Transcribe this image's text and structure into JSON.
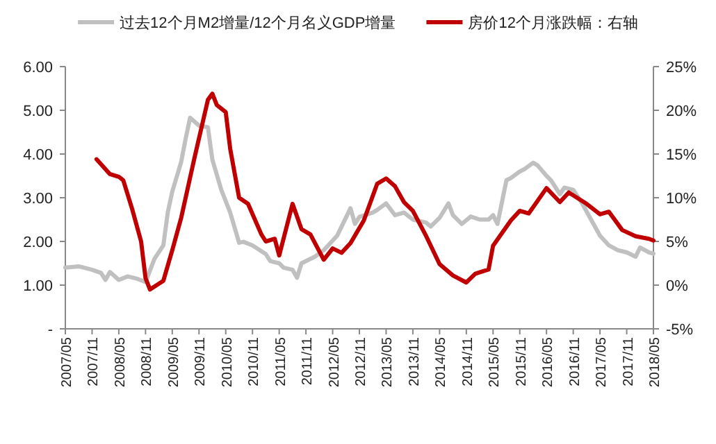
{
  "chart_data": {
    "type": "line",
    "legend": "top",
    "grid": false,
    "marker": "none",
    "line_style": "solid",
    "xlim": [
      "2007-05",
      "2018-05"
    ],
    "xticks": [
      {
        "value": "2007-05",
        "label": "2007/05"
      },
      {
        "value": "2007-11",
        "label": "2007/11"
      },
      {
        "value": "2008-05",
        "label": "2008/05"
      },
      {
        "value": "2008-11",
        "label": "2008/11"
      },
      {
        "value": "2009-05",
        "label": "2009/05"
      },
      {
        "value": "2009-11",
        "label": "2009/11"
      },
      {
        "value": "2010-05",
        "label": "2010/05"
      },
      {
        "value": "2010-11",
        "label": "2010/11"
      },
      {
        "value": "2011-05",
        "label": "2011/05"
      },
      {
        "value": "2011-11",
        "label": "2011/11"
      },
      {
        "value": "2012-05",
        "label": "2012/05"
      },
      {
        "value": "2012-11",
        "label": "2012/11"
      },
      {
        "value": "2013-05",
        "label": "2013/05"
      },
      {
        "value": "2013-11",
        "label": "2013/11"
      },
      {
        "value": "2014-05",
        "label": "2014/05"
      },
      {
        "value": "2014-11",
        "label": "2014/11"
      },
      {
        "value": "2015-05",
        "label": "2015/05"
      },
      {
        "value": "2015-11",
        "label": "2015/11"
      },
      {
        "value": "2016-05",
        "label": "2016/05"
      },
      {
        "value": "2016-11",
        "label": "2016/11"
      },
      {
        "value": "2017-05",
        "label": "2017/05"
      },
      {
        "value": "2017-11",
        "label": "2017/11"
      },
      {
        "value": "2018-05",
        "label": "2018/05"
      }
    ],
    "ylim": [
      0,
      6
    ],
    "yticks": [
      {
        "value": 0,
        "label": "-"
      },
      {
        "value": 1,
        "label": "1.00"
      },
      {
        "value": 2,
        "label": "2.00"
      },
      {
        "value": 3,
        "label": "3.00"
      },
      {
        "value": 4,
        "label": "4.00"
      },
      {
        "value": 5,
        "label": "5.00"
      },
      {
        "value": 6,
        "label": "6.00"
      }
    ],
    "y2lim": [
      -5,
      25
    ],
    "y2ticks": [
      {
        "value": -5,
        "label": "-5%"
      },
      {
        "value": 0,
        "label": "0%"
      },
      {
        "value": 5,
        "label": "5%"
      },
      {
        "value": 10,
        "label": "10%"
      },
      {
        "value": 15,
        "label": "15%"
      },
      {
        "value": 20,
        "label": "20%"
      },
      {
        "value": 25,
        "label": "25%"
      }
    ],
    "series": [
      {
        "name": "过去12个月M2增量/12个月名义GDP增量",
        "color": "#c0c0c0",
        "x": [
          "2007-05",
          "2007-08",
          "2007-11",
          "2008-01",
          "2008-02",
          "2008-03",
          "2008-05",
          "2008-07",
          "2008-09",
          "2008-11",
          "2009-01",
          "2009-03",
          "2009-04",
          "2009-05",
          "2009-07",
          "2009-08",
          "2009-09",
          "2009-11",
          "2010-01",
          "2010-02",
          "2010-04",
          "2010-06",
          "2010-08",
          "2010-09",
          "2010-11",
          "2011-02",
          "2011-03",
          "2011-05",
          "2011-06",
          "2011-08",
          "2011-09",
          "2011-10",
          "2012-01",
          "2012-03",
          "2012-04",
          "2012-06",
          "2012-07",
          "2012-09",
          "2012-10",
          "2012-11",
          "2013-02",
          "2013-03",
          "2013-05",
          "2013-07",
          "2013-09",
          "2013-11",
          "2014-02",
          "2014-03",
          "2014-05",
          "2014-07",
          "2014-08",
          "2014-10",
          "2014-12",
          "2015-02",
          "2015-04",
          "2015-05",
          "2015-06",
          "2015-08",
          "2015-09",
          "2015-11",
          "2015-12",
          "2016-02",
          "2016-03",
          "2016-05",
          "2016-06",
          "2016-08",
          "2016-09",
          "2016-11",
          "2017-01",
          "2017-03",
          "2017-05",
          "2017-07",
          "2017-09",
          "2017-11",
          "2018-01",
          "2018-02",
          "2018-04",
          "2018-05"
        ],
        "values": [
          1.4,
          1.43,
          1.35,
          1.28,
          1.12,
          1.3,
          1.12,
          1.2,
          1.15,
          1.07,
          1.6,
          1.91,
          2.67,
          3.14,
          3.82,
          4.35,
          4.83,
          4.65,
          4.61,
          3.87,
          3.18,
          2.66,
          1.97,
          1.99,
          1.91,
          1.71,
          1.55,
          1.5,
          1.4,
          1.35,
          1.17,
          1.5,
          1.65,
          1.8,
          1.91,
          2.13,
          2.34,
          2.76,
          2.4,
          2.56,
          2.66,
          2.72,
          2.87,
          2.6,
          2.66,
          2.5,
          2.43,
          2.34,
          2.54,
          2.87,
          2.6,
          2.4,
          2.57,
          2.5,
          2.5,
          2.6,
          2.4,
          3.4,
          3.45,
          3.6,
          3.65,
          3.8,
          3.74,
          3.5,
          3.4,
          3.08,
          3.23,
          3.18,
          2.87,
          2.5,
          2.13,
          1.91,
          1.8,
          1.75,
          1.65,
          1.86,
          1.75,
          1.72
        ]
      },
      {
        "name": "房价12个月涨跌幅：右轴",
        "color": "#c00000",
        "axis": "y2",
        "x": [
          "2007-12",
          "2008-03",
          "2008-05",
          "2008-06",
          "2008-08",
          "2008-10",
          "2008-11",
          "2008-12",
          "2009-03",
          "2009-05",
          "2009-07",
          "2009-10",
          "2010-01",
          "2010-02",
          "2010-03",
          "2010-05",
          "2010-06",
          "2010-08",
          "2010-10",
          "2011-01",
          "2011-02",
          "2011-04",
          "2011-05",
          "2011-08",
          "2011-10",
          "2011-12",
          "2012-03",
          "2012-05",
          "2012-07",
          "2012-09",
          "2012-12",
          "2013-03",
          "2013-05",
          "2013-07",
          "2013-09",
          "2013-11",
          "2014-02",
          "2014-05",
          "2014-08",
          "2014-11",
          "2015-01",
          "2015-04",
          "2015-05",
          "2015-09",
          "2015-11",
          "2016-01",
          "2016-05",
          "2016-08",
          "2016-10",
          "2017-02",
          "2017-05",
          "2017-07",
          "2017-10",
          "2018-01",
          "2018-04",
          "2018-05"
        ],
        "values": [
          14.4,
          12.7,
          12.4,
          12.0,
          8.7,
          5.0,
          0.8,
          -0.5,
          0.5,
          4.0,
          7.7,
          14.6,
          21.2,
          21.9,
          20.6,
          19.8,
          15.6,
          10.0,
          9.3,
          5.8,
          5.0,
          5.3,
          3.4,
          9.3,
          6.4,
          5.8,
          2.9,
          4.2,
          3.7,
          4.8,
          7.4,
          11.6,
          12.2,
          11.3,
          9.5,
          8.5,
          5.6,
          2.4,
          1.1,
          0.3,
          1.3,
          1.8,
          4.5,
          7.4,
          8.5,
          8.2,
          11.1,
          9.5,
          10.6,
          9.3,
          8.1,
          8.4,
          6.3,
          5.6,
          5.3,
          5.1
        ]
      }
    ]
  }
}
